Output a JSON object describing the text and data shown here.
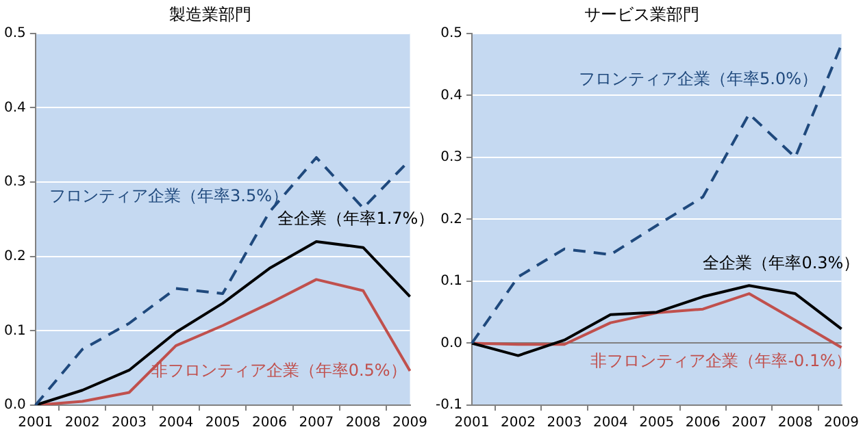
{
  "chart_data": [
    {
      "type": "line",
      "title": "製造業部門",
      "categories": [
        "2001",
        "2002",
        "2003",
        "2004",
        "2005",
        "2006",
        "2007",
        "2008",
        "2009"
      ],
      "ylim": [
        0,
        0.5
      ],
      "yticks": [
        {
          "value": 0,
          "label": "0.0"
        },
        0.1,
        0.2,
        0.3,
        0.4,
        0.5
      ],
      "grid": "y",
      "legend": false,
      "marker": "none",
      "series": [
        {
          "name": "フロンティア企業（年率3.5%）",
          "color": "#1f497d",
          "line_style": "dashed",
          "values": [
            0,
            0.075,
            0.11,
            0.157,
            0.15,
            0.26,
            0.333,
            0.265,
            0.33
          ]
        },
        {
          "name": "全企業（年率1.7%）",
          "color": "#000000",
          "line_style": "solid",
          "values": [
            0,
            0.02,
            0.047,
            0.098,
            0.137,
            0.184,
            0.22,
            0.212,
            0.146
          ]
        },
        {
          "name": "非フロンティア企業（年率0.5%）",
          "color": "#c0504d",
          "line_style": "solid",
          "values": [
            0,
            0.005,
            0.017,
            0.08,
            0.107,
            0.137,
            0.169,
            0.154,
            0.046
          ]
        }
      ]
    },
    {
      "type": "line",
      "title": "サービス業部門",
      "categories": [
        "2001",
        "2002",
        "2003",
        "2004",
        "2005",
        "2006",
        "2007",
        "2008",
        "2009"
      ],
      "ylim": [
        -0.1,
        0.5
      ],
      "yticks": [
        -0.1,
        {
          "value": 0,
          "label": "0.0"
        },
        0.1,
        0.2,
        0.3,
        0.4,
        0.5
      ],
      "grid": "y",
      "legend": false,
      "marker": "none",
      "series": [
        {
          "name": "フロンティア企業（年率5.0%）",
          "color": "#1f497d",
          "line_style": "dashed",
          "values": [
            0,
            0.107,
            0.152,
            0.143,
            0.19,
            0.236,
            0.37,
            0.3,
            0.482
          ]
        },
        {
          "name": "全企業（年率0.3%）",
          "color": "#000000",
          "line_style": "solid",
          "values": [
            0,
            -0.02,
            0.005,
            0.046,
            0.05,
            0.075,
            0.093,
            0.08,
            0.023
          ]
        },
        {
          "name": "非フロンティア企業（年率-0.1%）",
          "color": "#c0504d",
          "line_style": "solid",
          "values": [
            0,
            -0.002,
            -0.002,
            0.033,
            0.049,
            0.055,
            0.08,
            0.037,
            -0.007
          ]
        }
      ]
    }
  ]
}
